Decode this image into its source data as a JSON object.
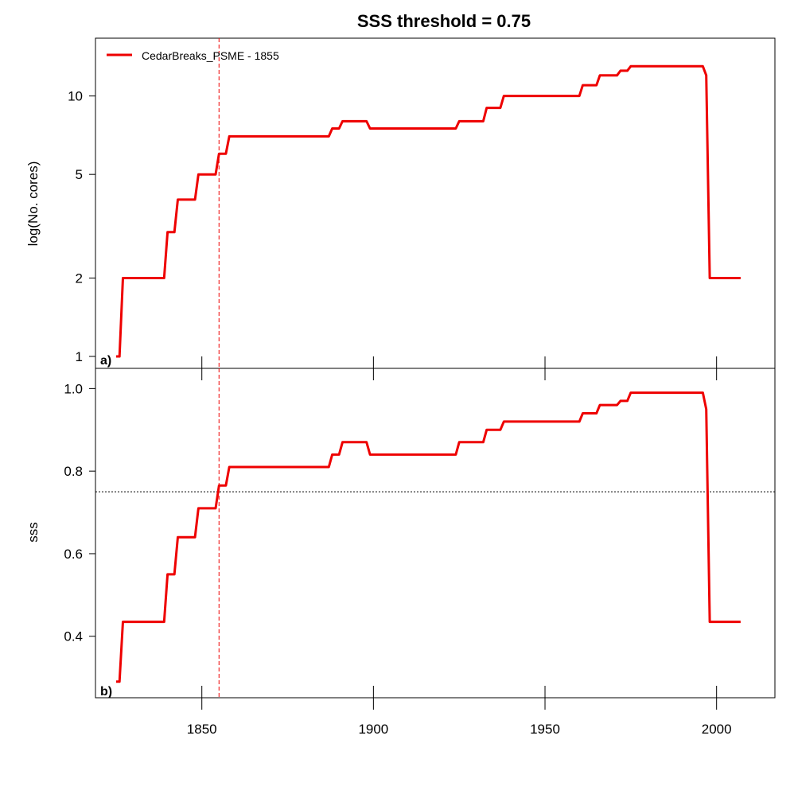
{
  "chart_data": {
    "type": "line",
    "title": "SSS threshold = 0.75",
    "colors": {
      "series": "#ee0000",
      "axes": "#000000",
      "threshold": "#000000",
      "marker": "#ee0000"
    },
    "legend": {
      "entry": "CedarBreaks_PSME - 1855",
      "placement": "top-left"
    },
    "marker_year": 1855,
    "xlim": [
      1819,
      2017
    ],
    "x_ticks": [
      1850,
      1900,
      1950,
      2000
    ],
    "x_tick_labels": [
      "1850",
      "1900",
      "1950",
      "2000"
    ],
    "panels": [
      {
        "tag": "a)",
        "ylabel": "log(No. cores)",
        "yscale": "log",
        "ylim": [
          1,
          15
        ],
        "y_ticks": [
          1,
          2,
          5,
          10
        ],
        "y_tick_labels": [
          "1",
          "2",
          "5",
          "10"
        ],
        "series": {
          "x": [
            1825,
            1826,
            1827,
            1838,
            1839,
            1840,
            1841,
            1842,
            1843,
            1847,
            1848,
            1849,
            1853,
            1854,
            1855,
            1856,
            1857,
            1858,
            1887,
            1888,
            1890,
            1891,
            1892,
            1898,
            1899,
            1924,
            1925,
            1932,
            1933,
            1936,
            1937,
            1938,
            1960,
            1961,
            1965,
            1966,
            1971,
            1972,
            1974,
            1975,
            1977,
            1996,
            1997,
            1998,
            1999,
            2007
          ],
          "y": [
            1,
            1,
            2,
            2,
            2,
            3,
            3,
            3,
            4,
            4,
            4,
            5,
            5,
            5,
            6,
            6,
            6,
            7,
            7,
            7.5,
            7.5,
            8,
            8,
            8,
            7.5,
            7.5,
            8,
            8,
            9,
            9,
            9,
            10,
            10,
            11,
            11,
            12,
            12,
            12.5,
            12.5,
            13,
            13,
            13,
            12,
            2,
            2,
            2
          ]
        }
      },
      {
        "tag": "b)",
        "ylabel": "sss",
        "yscale": "linear",
        "ylim": [
          0.28,
          1.02
        ],
        "y_ticks": [
          0.4,
          0.6,
          0.8,
          1.0
        ],
        "y_tick_labels": [
          "0.4",
          "0.6",
          "0.8",
          "1.0"
        ],
        "threshold": 0.75,
        "series": {
          "x": [
            1825,
            1826,
            1827,
            1838,
            1839,
            1840,
            1841,
            1842,
            1843,
            1847,
            1848,
            1849,
            1853,
            1854,
            1855,
            1856,
            1857,
            1858,
            1887,
            1888,
            1890,
            1891,
            1892,
            1898,
            1899,
            1924,
            1925,
            1932,
            1933,
            1936,
            1937,
            1938,
            1960,
            1961,
            1965,
            1966,
            1971,
            1972,
            1974,
            1975,
            1977,
            1996,
            1997,
            1998,
            1999,
            2007
          ],
          "y": [
            0.29,
            0.29,
            0.435,
            0.435,
            0.435,
            0.55,
            0.55,
            0.55,
            0.64,
            0.64,
            0.64,
            0.71,
            0.71,
            0.71,
            0.765,
            0.765,
            0.765,
            0.81,
            0.81,
            0.84,
            0.84,
            0.87,
            0.87,
            0.87,
            0.84,
            0.84,
            0.87,
            0.87,
            0.9,
            0.9,
            0.9,
            0.92,
            0.92,
            0.94,
            0.94,
            0.96,
            0.96,
            0.97,
            0.97,
            0.99,
            0.99,
            0.99,
            0.95,
            0.435,
            0.435,
            0.435
          ]
        }
      }
    ]
  }
}
